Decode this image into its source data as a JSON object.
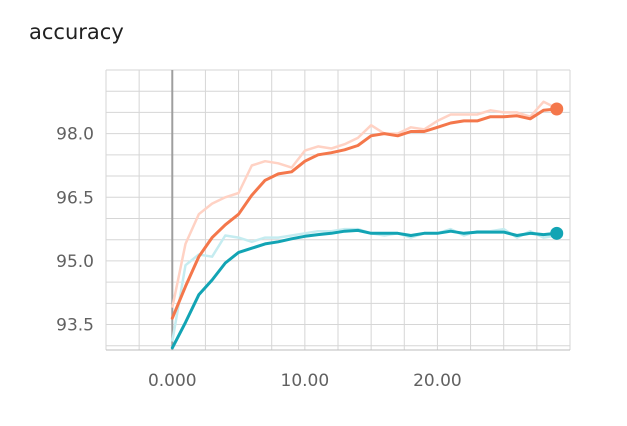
{
  "chart_data": {
    "type": "line",
    "title": "accuracy",
    "xlabel": "",
    "ylabel": "",
    "xlim": [
      -5,
      30
    ],
    "ylim": [
      92.9,
      99.5
    ],
    "x_ticks": [
      0,
      10,
      20
    ],
    "x_tick_labels": [
      "0.000",
      "10.00",
      "20.00"
    ],
    "y_ticks": [
      93.5,
      95.0,
      96.5,
      98.0
    ],
    "y_tick_labels": [
      "93.5",
      "95.0",
      "96.5",
      "98.0"
    ],
    "grid": true,
    "smoothed": true,
    "series": [
      {
        "color": "#f4774b",
        "raw_color": "#ffd2c4",
        "x": [
          0,
          1,
          2,
          3,
          4,
          5,
          6,
          7,
          8,
          9,
          10,
          11,
          12,
          13,
          14,
          15,
          16,
          17,
          18,
          19,
          20,
          21,
          22,
          23,
          24,
          25,
          26,
          27,
          28,
          29
        ],
        "values_raw": [
          93.9,
          95.4,
          96.1,
          96.35,
          96.5,
          96.6,
          97.25,
          97.35,
          97.3,
          97.2,
          97.6,
          97.7,
          97.65,
          97.75,
          97.9,
          98.2,
          98.0,
          98.0,
          98.15,
          98.1,
          98.3,
          98.45,
          98.45,
          98.45,
          98.55,
          98.5,
          98.5,
          98.4,
          98.75,
          98.6
        ],
        "values": [
          93.65,
          94.4,
          95.1,
          95.55,
          95.85,
          96.1,
          96.55,
          96.9,
          97.05,
          97.1,
          97.35,
          97.5,
          97.55,
          97.62,
          97.72,
          97.95,
          98.0,
          97.95,
          98.05,
          98.05,
          98.15,
          98.25,
          98.3,
          98.3,
          98.4,
          98.4,
          98.42,
          98.35,
          98.55,
          98.58
        ]
      },
      {
        "color": "#12a4b4",
        "raw_color": "#c5ecf0",
        "x": [
          0,
          1,
          2,
          3,
          4,
          5,
          6,
          7,
          8,
          9,
          10,
          11,
          12,
          13,
          14,
          15,
          16,
          17,
          18,
          19,
          20,
          21,
          22,
          23,
          24,
          25,
          26,
          27,
          28,
          29
        ],
        "values_raw": [
          93.1,
          94.9,
          95.15,
          95.1,
          95.6,
          95.55,
          95.45,
          95.55,
          95.55,
          95.6,
          95.65,
          95.7,
          95.7,
          95.75,
          95.75,
          95.65,
          95.6,
          95.65,
          95.55,
          95.65,
          95.65,
          95.75,
          95.6,
          95.7,
          95.7,
          95.75,
          95.55,
          95.7,
          95.55,
          95.6
        ],
        "values": [
          92.95,
          93.55,
          94.2,
          94.55,
          94.95,
          95.2,
          95.3,
          95.4,
          95.45,
          95.52,
          95.58,
          95.62,
          95.65,
          95.7,
          95.72,
          95.65,
          95.65,
          95.65,
          95.6,
          95.65,
          95.65,
          95.7,
          95.65,
          95.68,
          95.68,
          95.68,
          95.6,
          95.65,
          95.62,
          95.65
        ]
      }
    ]
  }
}
